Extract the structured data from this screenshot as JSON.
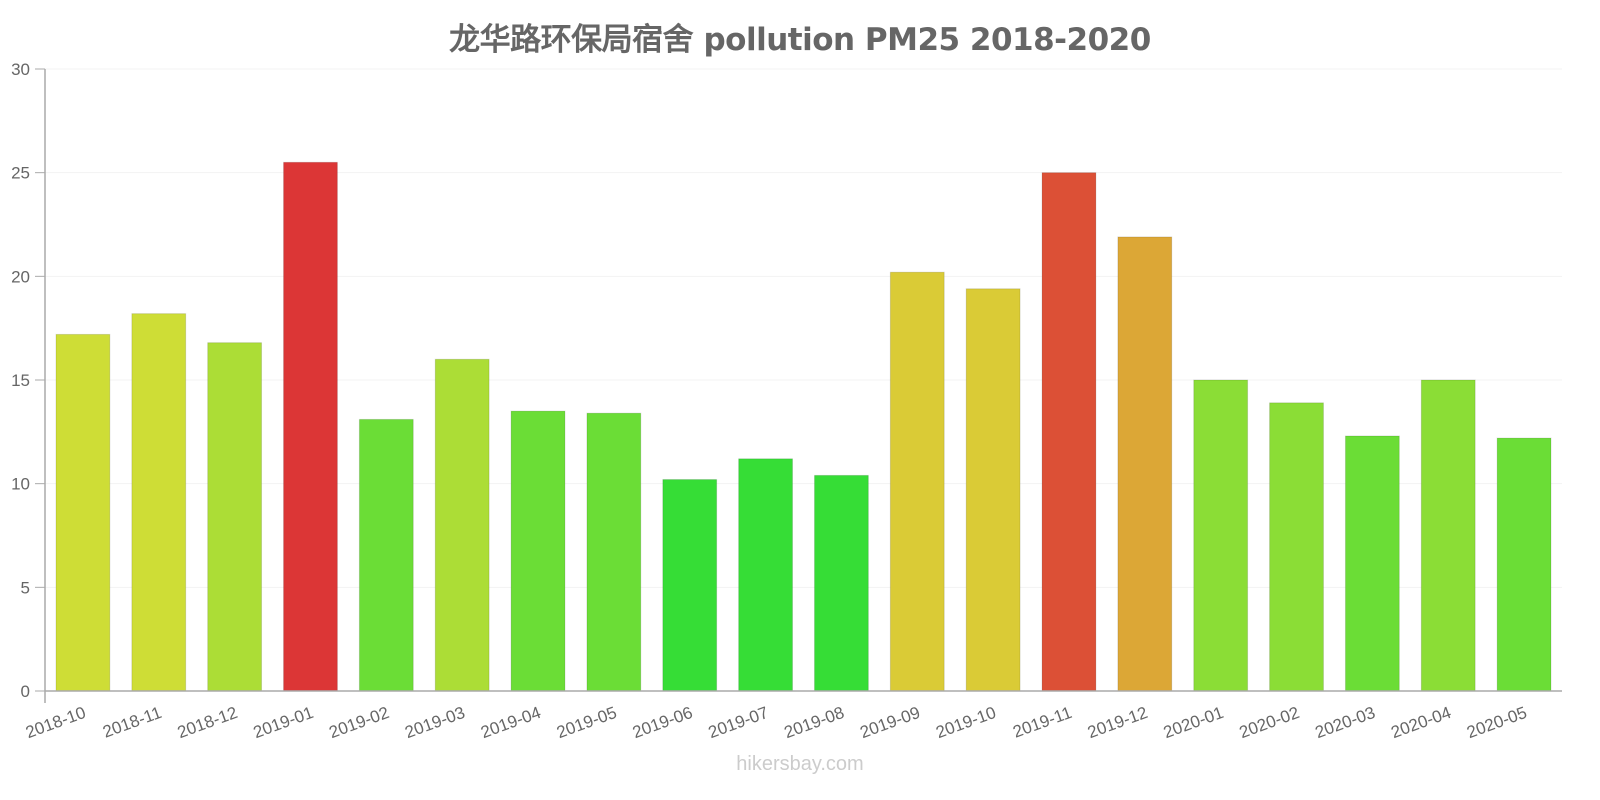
{
  "chart_data": {
    "type": "bar",
    "title": "龙华路环保局宿舍 pollution PM25 2018-2020",
    "xlabel": "",
    "ylabel": "",
    "ylim": [
      0,
      30
    ],
    "yticks": [
      0,
      5,
      10,
      15,
      20,
      25,
      30
    ],
    "grid": true,
    "legend": null,
    "categories": [
      "2018-10",
      "2018-11",
      "2018-12",
      "2019-01",
      "2019-02",
      "2019-03",
      "2019-04",
      "2019-05",
      "2019-06",
      "2019-07",
      "2019-08",
      "2019-09",
      "2019-10",
      "2019-11",
      "2019-12",
      "2020-01",
      "2020-02",
      "2020-03",
      "2020-04",
      "2020-05"
    ],
    "values": [
      17.2,
      18.2,
      16.8,
      25.5,
      13.1,
      16.0,
      13.5,
      13.4,
      10.2,
      11.2,
      10.4,
      20.2,
      19.4,
      25.0,
      21.9,
      15.0,
      13.9,
      12.3,
      15.0,
      12.2
    ],
    "colors": [
      "#cedd36",
      "#cedd36",
      "#acdd36",
      "#dc3636",
      "#6bdd36",
      "#acdd36",
      "#6bdd36",
      "#6bdd36",
      "#36dd36",
      "#36dd36",
      "#36dd36",
      "#dacb36",
      "#dacb36",
      "#dc5036",
      "#dca736",
      "#8bdd36",
      "#8bdd36",
      "#6bdd36",
      "#8bdd36",
      "#6bdd36"
    ]
  },
  "watermark": "hikersbay.com"
}
